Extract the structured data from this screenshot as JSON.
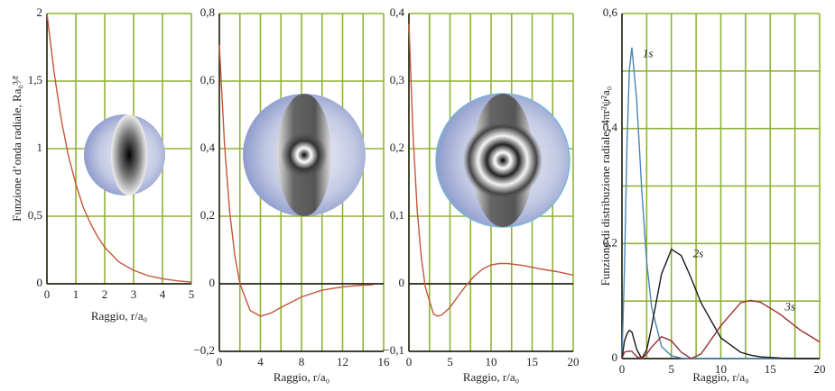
{
  "chart_data": [
    {
      "type": "line",
      "ylabel": "Funzione d’onda radiale, Ra₀³⁄²",
      "xlabel": "Raggio, r/a₀",
      "color": "#c4563a",
      "x": [
        0,
        0.25,
        0.5,
        0.75,
        1,
        1.25,
        1.5,
        1.75,
        2,
        2.5,
        3,
        3.5,
        4,
        4.5,
        5
      ],
      "values": [
        2,
        1.56,
        1.21,
        0.94,
        0.74,
        0.57,
        0.45,
        0.35,
        0.27,
        0.16,
        0.1,
        0.06,
        0.037,
        0.022,
        0.013
      ],
      "xlim": [
        0,
        5
      ],
      "ylim": [
        0,
        2
      ],
      "xticks": [
        0,
        1,
        2,
        3,
        4,
        5
      ],
      "yticks": [
        0,
        {
          "value": 0.5,
          "label": "0,5"
        },
        1,
        {
          "value": 1.5,
          "label": "1,5"
        },
        2
      ],
      "grid": true
    },
    {
      "type": "line",
      "xlabel": "Raggio, r/a₀",
      "color": "#c4563a",
      "x": [
        0,
        0.5,
        1,
        1.5,
        2,
        3,
        4,
        5,
        6,
        8,
        10,
        12,
        14,
        15
      ],
      "values": [
        0.707,
        0.413,
        0.214,
        0.084,
        0,
        -0.079,
        -0.096,
        -0.087,
        -0.07,
        -0.039,
        -0.019,
        -0.009,
        -0.004,
        -0.003
      ],
      "xlim": [
        0,
        16
      ],
      "ylim": [
        -0.2,
        0.8
      ],
      "xticks": [
        0,
        4,
        8,
        12,
        16
      ],
      "xgrid": [
        0,
        2,
        4,
        6,
        8,
        10,
        12,
        14,
        16
      ],
      "yticks": [
        {
          "value": -0.2,
          "label": "−0,2"
        },
        0,
        {
          "value": 0.2,
          "label": "0,2"
        },
        {
          "value": 0.4,
          "label": "0,4"
        },
        {
          "value": 0.6,
          "label": "0,6"
        },
        {
          "value": 0.8,
          "label": "0,8"
        }
      ],
      "grid": true,
      "zero_line": true
    },
    {
      "type": "line",
      "xlabel": "Raggio, r/a₀",
      "color": "#c4563a",
      "x": [
        0,
        0.5,
        1,
        1.5,
        2,
        3,
        3.5,
        4,
        5,
        6,
        7,
        8,
        9,
        10,
        11,
        12,
        14,
        16,
        18,
        20
      ],
      "values": [
        0.385,
        0.22,
        0.11,
        0.04,
        -0.005,
        -0.045,
        -0.048,
        -0.046,
        -0.035,
        -0.018,
        -0.002,
        0.012,
        0.022,
        0.028,
        0.03,
        0.03,
        0.027,
        0.022,
        0.018,
        0.013
      ],
      "xlim": [
        0,
        20
      ],
      "ylim": [
        -0.1,
        0.4
      ],
      "xticks": [
        0,
        5,
        10,
        15,
        20
      ],
      "xgrid": [
        0,
        2.5,
        5,
        7.5,
        10,
        12.5,
        15,
        17.5,
        20
      ],
      "yticks": [
        {
          "value": -0.1,
          "label": "−0,1"
        },
        0,
        {
          "value": 0.1,
          "label": "0,1"
        },
        {
          "value": 0.2,
          "label": "0,2"
        },
        {
          "value": 0.3,
          "label": "0,3"
        },
        {
          "value": 0.4,
          "label": "0,4"
        }
      ],
      "grid": true,
      "zero_line": true
    },
    {
      "type": "line",
      "ylabel": "Funzione di distribuzione radiale, 4πr²ψ²a₀",
      "xlabel": "Raggio, r/a₀",
      "x": [
        0,
        0.25,
        0.5,
        0.75,
        1,
        1.5,
        2,
        2.5,
        3,
        4,
        5,
        6,
        7,
        8,
        10,
        12,
        13,
        14,
        16,
        18,
        20
      ],
      "series": [
        {
          "name": "1s",
          "color": "#4a86b4",
          "values": [
            0,
            0.152,
            0.368,
            0.502,
            0.541,
            0.448,
            0.293,
            0.168,
            0.089,
            0.021,
            0.005,
            0.001,
            0,
            0,
            0,
            0,
            0,
            0,
            0,
            0,
            0
          ]
        },
        {
          "name": "2s",
          "color": "#1a1a1a",
          "values": [
            0,
            0.03,
            0.043,
            0.049,
            0.046,
            0.016,
            0,
            0.015,
            0.056,
            0.147,
            0.19,
            0.179,
            0.14,
            0.097,
            0.036,
            0.011,
            0.006,
            0.003,
            0.001,
            0,
            0
          ]
        },
        {
          "name": "3s",
          "color": "#9a2e30",
          "values": [
            0,
            0.011,
            0.0125,
            0.013,
            0.0126,
            0.0034,
            0,
            0.008,
            0.02,
            0.038,
            0.031,
            0.011,
            0,
            0.008,
            0.057,
            0.097,
            0.101,
            0.098,
            0.077,
            0.05,
            0.029
          ]
        }
      ],
      "xlim": [
        0,
        20
      ],
      "ylim": [
        0,
        0.6
      ],
      "xticks": [
        0,
        5,
        10,
        15,
        20
      ],
      "xgrid": [
        0,
        2.5,
        5,
        7.5,
        10,
        12.5,
        15,
        17.5,
        20
      ],
      "yticks": [
        0,
        {
          "value": 0.2,
          "label": "0,2"
        },
        {
          "value": 0.4,
          "label": "0,4"
        },
        {
          "value": 0.6,
          "label": "0,6"
        }
      ],
      "ygrid": [
        0,
        0.1,
        0.2,
        0.3,
        0.4,
        0.5,
        0.6
      ],
      "grid": true
    }
  ]
}
